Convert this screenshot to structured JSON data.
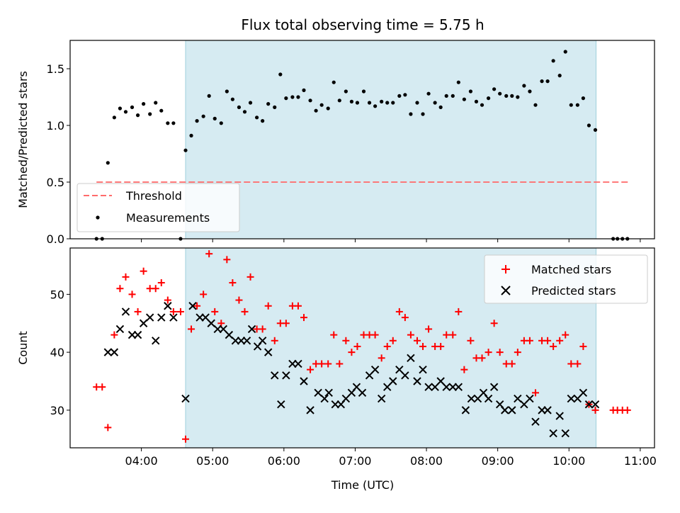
{
  "chart_data": {
    "type": "scatter",
    "title": "Flux total observing time = 5.75 h",
    "xlabel": "Time (UTC)",
    "x_unit": "hours UTC",
    "x_ticks": [
      4,
      5,
      6,
      7,
      8,
      9,
      10,
      11
    ],
    "x_tick_labels": [
      "04:00",
      "05:00",
      "06:00",
      "07:00",
      "08:00",
      "09:00",
      "10:00",
      "11:00"
    ],
    "xlim": [
      3.0,
      11.2
    ],
    "shaded_span": [
      4.62,
      10.38
    ],
    "shade_color": "#add8e6",
    "panels": [
      {
        "ylabel": "Matched/Predicted stars",
        "ylim": [
          0,
          1.75
        ],
        "y_ticks": [
          "0.0",
          "0.5",
          "1.0",
          "1.5"
        ],
        "legend_position": "lower-left",
        "series": [
          {
            "name": "Threshold",
            "type": "line",
            "style": "dashed",
            "color": "#ff6b6b",
            "x": [
              3.37,
              10.83
            ],
            "y": [
              0.5,
              0.5
            ]
          },
          {
            "name": "Measurements",
            "type": "scatter",
            "marker": "dot",
            "color": "#000000",
            "x": [
              3.37,
              3.45,
              3.53,
              3.62,
              3.7,
              3.78,
              3.87,
              3.95,
              4.03,
              4.12,
              4.2,
              4.28,
              4.37,
              4.45,
              4.55,
              4.62,
              4.7,
              4.78,
              4.87,
              4.95,
              5.03,
              5.12,
              5.2,
              5.28,
              5.37,
              5.45,
              5.53,
              5.62,
              5.7,
              5.78,
              5.87,
              5.95,
              6.03,
              6.12,
              6.2,
              6.28,
              6.37,
              6.45,
              6.53,
              6.62,
              6.7,
              6.78,
              6.87,
              6.95,
              7.03,
              7.12,
              7.2,
              7.28,
              7.37,
              7.45,
              7.53,
              7.62,
              7.7,
              7.78,
              7.87,
              7.95,
              8.03,
              8.12,
              8.2,
              8.28,
              8.37,
              8.45,
              8.53,
              8.62,
              8.7,
              8.78,
              8.87,
              8.95,
              9.03,
              9.12,
              9.2,
              9.28,
              9.37,
              9.45,
              9.53,
              9.62,
              9.7,
              9.78,
              9.87,
              9.95,
              10.03,
              10.12,
              10.2,
              10.28,
              10.37,
              10.62,
              10.68,
              10.75,
              10.82
            ],
            "y": [
              0.0,
              0.0,
              0.67,
              1.07,
              1.15,
              1.12,
              1.16,
              1.09,
              1.19,
              1.1,
              1.2,
              1.13,
              1.02,
              1.02,
              0.0,
              0.78,
              0.91,
              1.04,
              1.08,
              1.26,
              1.06,
              1.02,
              1.3,
              1.23,
              1.16,
              1.12,
              1.2,
              1.07,
              1.04,
              1.19,
              1.16,
              1.45,
              1.24,
              1.25,
              1.25,
              1.31,
              1.22,
              1.13,
              1.18,
              1.15,
              1.38,
              1.22,
              1.3,
              1.21,
              1.2,
              1.3,
              1.2,
              1.17,
              1.21,
              1.2,
              1.2,
              1.26,
              1.27,
              1.1,
              1.2,
              1.1,
              1.28,
              1.2,
              1.16,
              1.26,
              1.26,
              1.38,
              1.23,
              1.3,
              1.21,
              1.18,
              1.24,
              1.32,
              1.28,
              1.26,
              1.26,
              1.25,
              1.35,
              1.3,
              1.18,
              1.39,
              1.39,
              1.57,
              1.44,
              1.65,
              1.18,
              1.18,
              1.24,
              1.0,
              0.96,
              0.0,
              0.0,
              0.0,
              0.0
            ]
          }
        ]
      },
      {
        "ylabel": "Count",
        "ylim": [
          23.5,
          58
        ],
        "y_ticks": [
          "30",
          "40",
          "50"
        ],
        "legend_position": "upper-right",
        "series": [
          {
            "name": "Matched stars",
            "type": "scatter",
            "marker": "plus",
            "color": "#ff0000",
            "x": [
              3.37,
              3.45,
              3.53,
              3.62,
              3.7,
              3.78,
              3.87,
              3.95,
              4.03,
              4.12,
              4.2,
              4.28,
              4.37,
              4.45,
              4.55,
              4.62,
              4.7,
              4.78,
              4.87,
              4.95,
              5.03,
              5.12,
              5.2,
              5.28,
              5.37,
              5.45,
              5.53,
              5.62,
              5.7,
              5.78,
              5.87,
              5.95,
              6.03,
              6.12,
              6.2,
              6.28,
              6.37,
              6.45,
              6.53,
              6.62,
              6.7,
              6.78,
              6.87,
              6.95,
              7.03,
              7.12,
              7.2,
              7.28,
              7.37,
              7.45,
              7.53,
              7.62,
              7.7,
              7.78,
              7.87,
              7.95,
              8.03,
              8.12,
              8.2,
              8.28,
              8.37,
              8.45,
              8.53,
              8.62,
              8.7,
              8.78,
              8.87,
              8.95,
              9.03,
              9.12,
              9.2,
              9.28,
              9.37,
              9.45,
              9.53,
              9.62,
              9.7,
              9.78,
              9.87,
              9.95,
              10.03,
              10.12,
              10.2,
              10.28,
              10.37,
              10.62,
              10.68,
              10.75,
              10.82
            ],
            "y": [
              34,
              34,
              27,
              43,
              51,
              53,
              50,
              47,
              54,
              51,
              51,
              52,
              49,
              47,
              47,
              25,
              44,
              48,
              50,
              57,
              47,
              45,
              56,
              52,
              49,
              47,
              53,
              44,
              44,
              48,
              42,
              45,
              45,
              48,
              48,
              46,
              37,
              38,
              38,
              38,
              43,
              38,
              42,
              40,
              41,
              43,
              43,
              43,
              39,
              41,
              42,
              47,
              46,
              43,
              42,
              41,
              44,
              41,
              41,
              43,
              43,
              47,
              37,
              42,
              39,
              39,
              40,
              45,
              40,
              38,
              38,
              40,
              42,
              42,
              33,
              42,
              42,
              41,
              42,
              43,
              38,
              38,
              41,
              31,
              30,
              30,
              30,
              30,
              30
            ]
          },
          {
            "name": "Predicted stars",
            "type": "scatter",
            "marker": "x",
            "color": "#000000",
            "x": [
              3.53,
              3.62,
              3.7,
              3.78,
              3.87,
              3.95,
              4.03,
              4.12,
              4.2,
              4.28,
              4.37,
              4.45,
              4.62,
              4.72,
              4.82,
              4.9,
              4.98,
              5.07,
              5.15,
              5.23,
              5.32,
              5.4,
              5.48,
              5.55,
              5.63,
              5.7,
              5.78,
              5.87,
              5.96,
              6.03,
              6.12,
              6.2,
              6.28,
              6.37,
              6.48,
              6.57,
              6.63,
              6.72,
              6.8,
              6.87,
              6.95,
              7.02,
              7.1,
              7.2,
              7.28,
              7.37,
              7.45,
              7.53,
              7.62,
              7.7,
              7.78,
              7.87,
              7.95,
              8.03,
              8.12,
              8.2,
              8.28,
              8.37,
              8.45,
              8.55,
              8.63,
              8.72,
              8.8,
              8.87,
              8.95,
              9.03,
              9.1,
              9.2,
              9.28,
              9.37,
              9.45,
              9.53,
              9.62,
              9.7,
              9.78,
              9.87,
              9.95,
              10.03,
              10.12,
              10.2,
              10.28,
              10.37
            ],
            "y": [
              40,
              40,
              44,
              47,
              43,
              43,
              45,
              46,
              42,
              46,
              48,
              46,
              32,
              48,
              46,
              46,
              45,
              44,
              44,
              43,
              42,
              42,
              42,
              44,
              41,
              42,
              40,
              36,
              31,
              36,
              38,
              38,
              35,
              30,
              33,
              32,
              33,
              31,
              31,
              32,
              33,
              34,
              33,
              36,
              37,
              32,
              34,
              35,
              37,
              36,
              39,
              35,
              37,
              34,
              34,
              35,
              34,
              34,
              34,
              30,
              32,
              32,
              33,
              32,
              34,
              31,
              30,
              30,
              32,
              31,
              32,
              28,
              30,
              30,
              26,
              29,
              26,
              32,
              32,
              33,
              31,
              31
            ]
          }
        ]
      }
    ]
  }
}
